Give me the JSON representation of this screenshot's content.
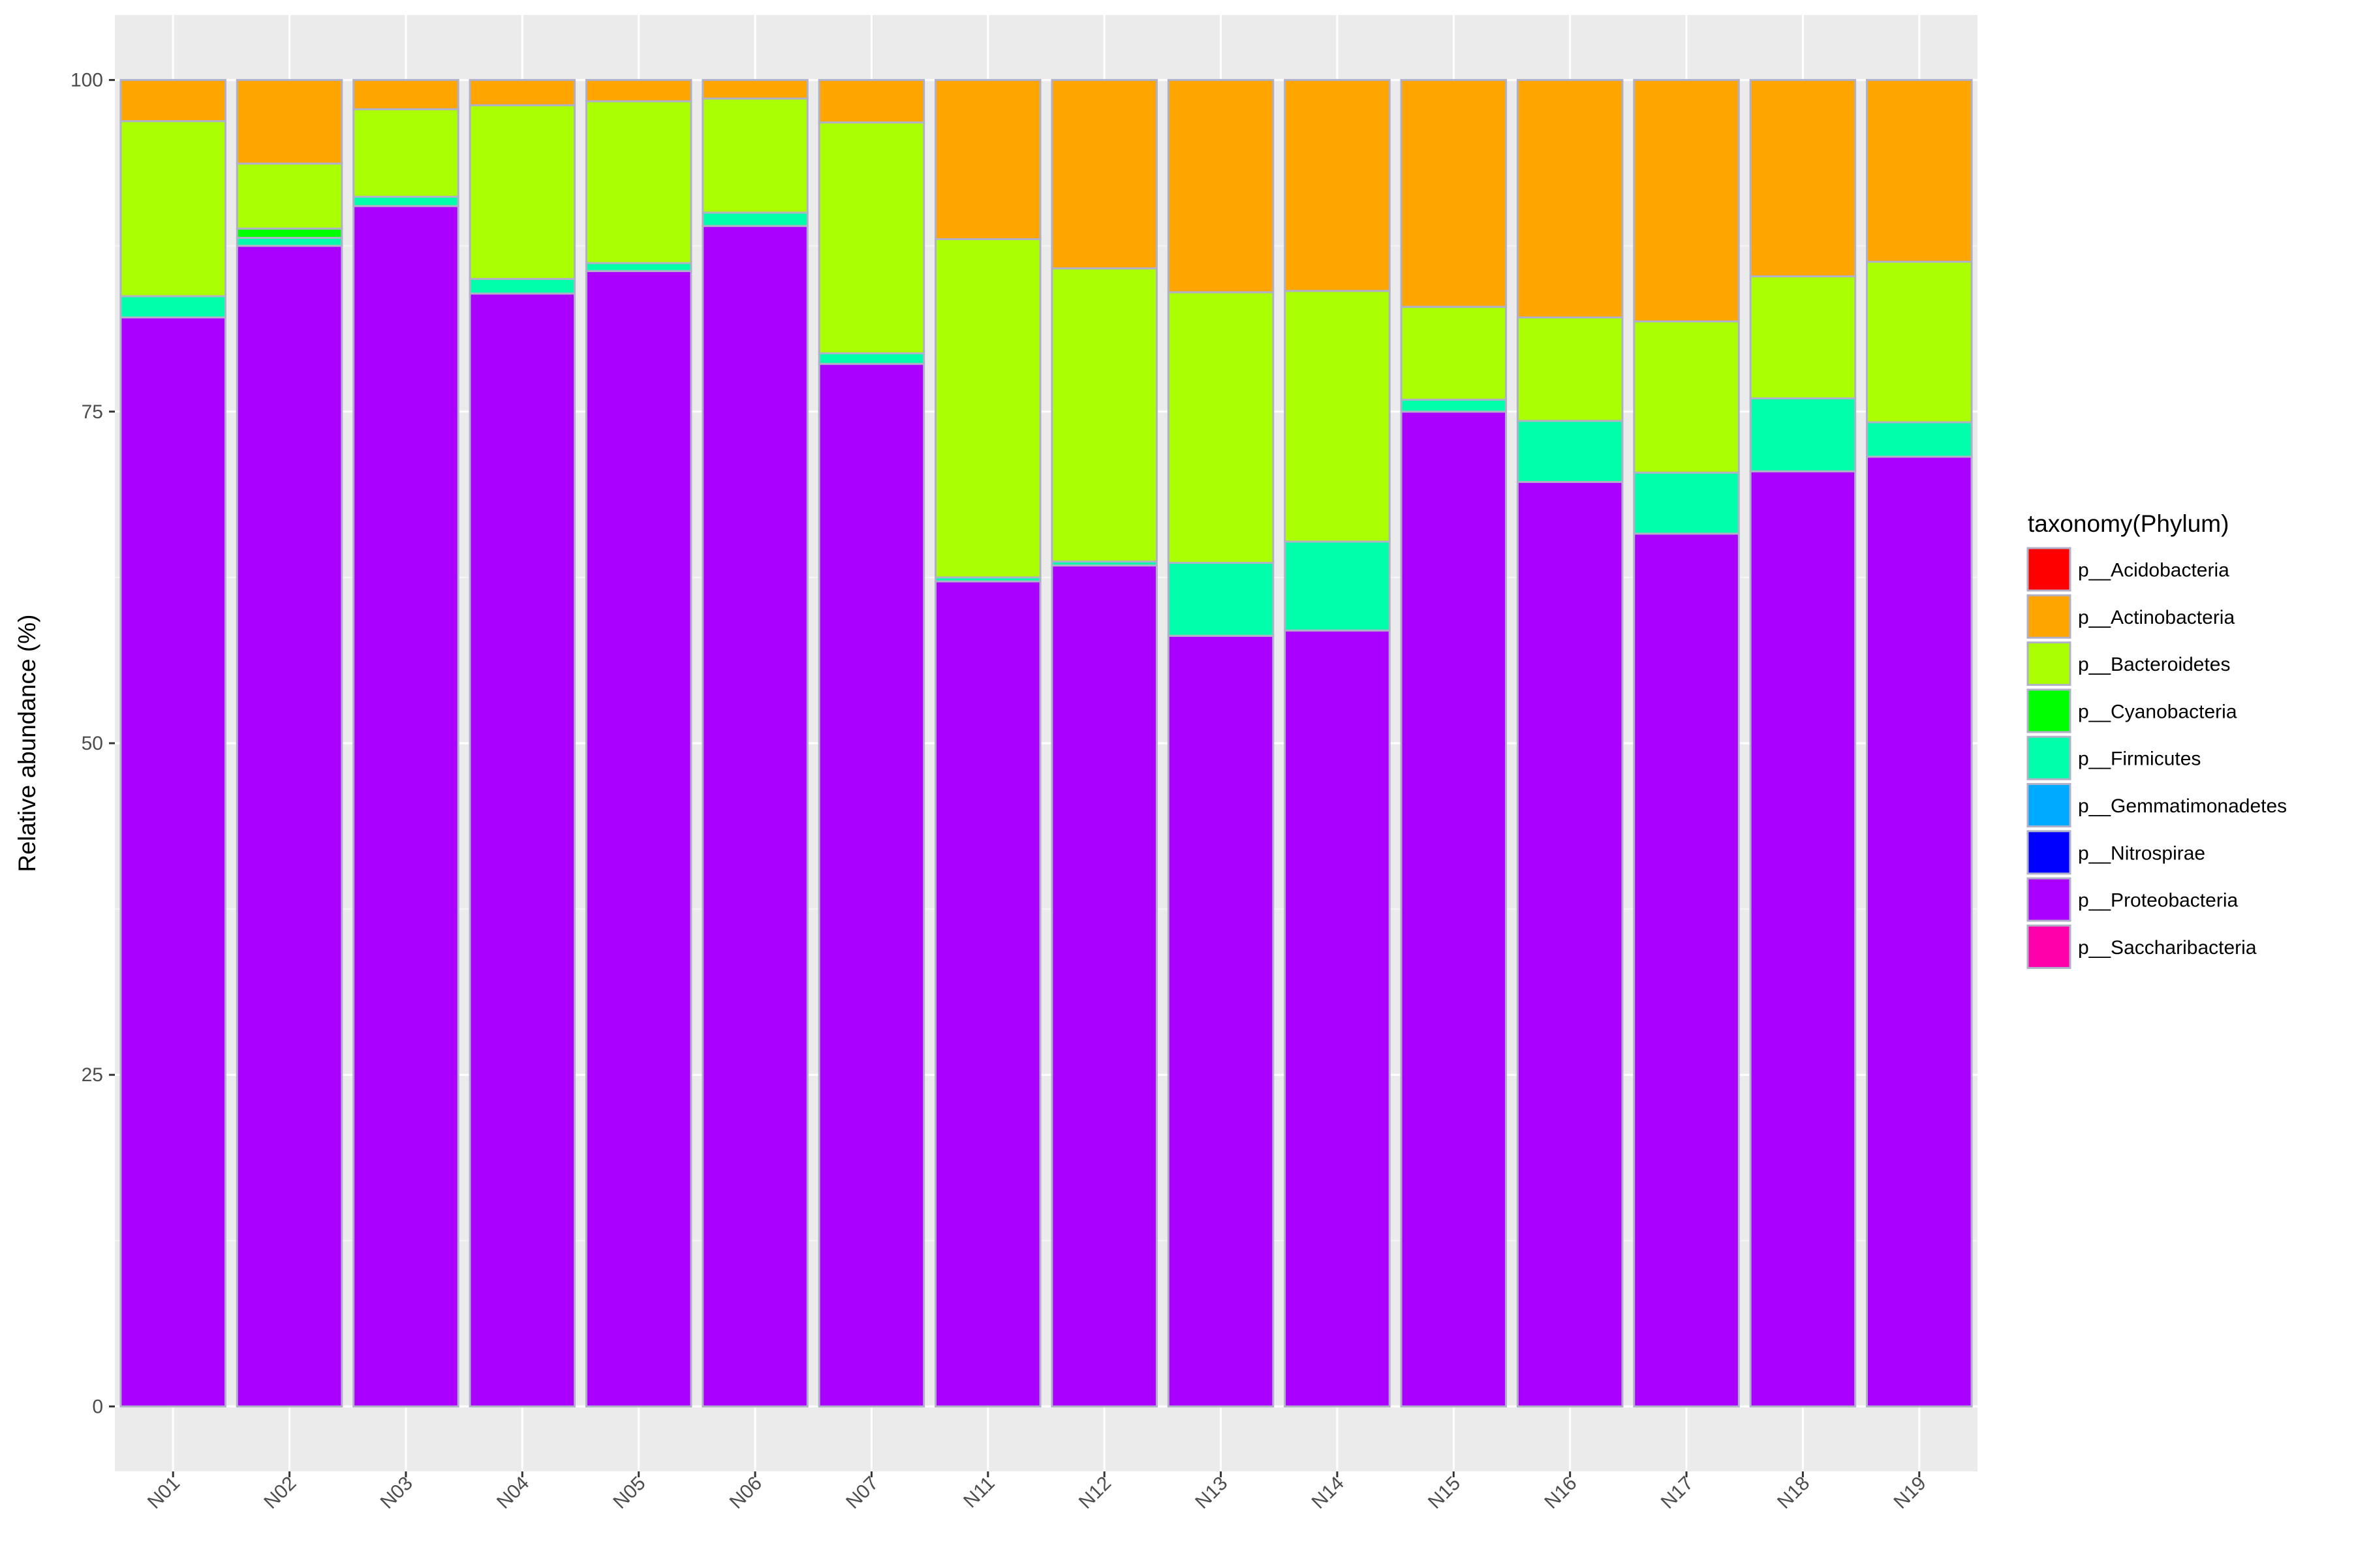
{
  "chart_data": {
    "type": "bar",
    "stacked": true,
    "xlabel": "",
    "ylabel": "Relative abundance (%)",
    "ylim": [
      -4.9,
      104.9
    ],
    "yticks": [
      0,
      25,
      50,
      75,
      100
    ],
    "ytick_labels": [
      "0",
      "25",
      "50",
      "75",
      "100"
    ],
    "grid": true,
    "legend_position": "right",
    "legend_title": "taxonomy(Phylum)",
    "categories": [
      "N01",
      "N02",
      "N03",
      "N04",
      "N05",
      "N06",
      "N07",
      "N11",
      "N12",
      "N13",
      "N14",
      "N15",
      "N16",
      "N17",
      "N18",
      "N19"
    ],
    "series": [
      {
        "name": "p__Acidobacteria",
        "color": "#FF0000",
        "values": [
          0,
          0,
          0,
          0,
          0,
          0,
          0,
          0,
          0,
          0,
          0,
          0,
          0,
          0,
          0,
          0
        ]
      },
      {
        "name": "p__Actinobacteria",
        "color": "#FFA500",
        "values": [
          3.1,
          6.3,
          2.2,
          1.9,
          1.6,
          1.4,
          3.2,
          12.0,
          14.2,
          16.0,
          15.9,
          17.1,
          17.9,
          18.2,
          14.8,
          13.7
        ]
      },
      {
        "name": "p__Bacteroidetes",
        "color": "#AAFF00",
        "values": [
          13.2,
          4.9,
          6.6,
          13.1,
          12.2,
          8.6,
          17.4,
          25.5,
          22.1,
          20.4,
          18.9,
          7.0,
          7.8,
          11.4,
          9.2,
          12.1
        ]
      },
      {
        "name": "p__Cyanobacteria",
        "color": "#00FF00",
        "values": [
          0,
          0.7,
          0,
          0,
          0,
          0,
          0,
          0,
          0,
          0,
          0,
          0,
          0,
          0,
          0,
          0
        ]
      },
      {
        "name": "p__Firmicutes",
        "color": "#00FFAA",
        "values": [
          1.6,
          0.6,
          0.7,
          1.1,
          0.6,
          1.0,
          0.8,
          0.3,
          0.3,
          5.5,
          6.7,
          0.9,
          4.6,
          4.6,
          5.5,
          2.6
        ]
      },
      {
        "name": "p__Gemmatimonadetes",
        "color": "#00AAFF",
        "values": [
          0,
          0,
          0,
          0,
          0,
          0,
          0,
          0,
          0,
          0,
          0,
          0,
          0,
          0,
          0,
          0
        ]
      },
      {
        "name": "p__Nitrospirae",
        "color": "#0000FF",
        "values": [
          0,
          0,
          0,
          0,
          0,
          0,
          0,
          0,
          0,
          0,
          0,
          0,
          0,
          0,
          0,
          0
        ]
      },
      {
        "name": "p__Proteobacteria",
        "color": "#AA00FF",
        "values": [
          82.1,
          87.5,
          90.5,
          83.9,
          85.6,
          89.0,
          78.6,
          62.2,
          63.4,
          58.1,
          58.5,
          75.0,
          69.7,
          65.8,
          70.5,
          71.6
        ]
      },
      {
        "name": "p__Saccharibacteria",
        "color": "#FF00AA",
        "values": [
          0,
          0,
          0,
          0,
          0,
          0,
          0,
          0,
          0,
          0,
          0,
          0,
          0,
          0,
          0,
          0
        ]
      }
    ]
  }
}
